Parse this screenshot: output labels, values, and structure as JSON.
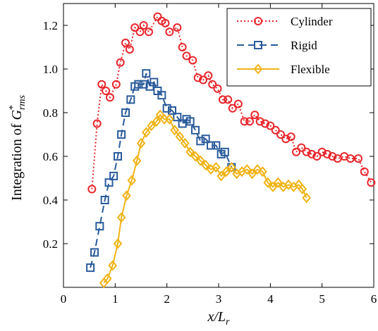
{
  "chart_data": {
    "type": "line",
    "xlabel_main": "x/L",
    "xlabel_sub": "r",
    "ylabel_text": "Integration of ",
    "ylabel_symbol": "G",
    "ylabel_sup": "*",
    "ylabel_sub": "rms",
    "xlim": [
      0,
      6
    ],
    "ylim": [
      0,
      1.3
    ],
    "xticks": [
      0,
      1,
      2,
      3,
      4,
      5,
      6
    ],
    "yticks": [
      0.2,
      0.4,
      0.6,
      {
        "value": 0.8,
        "label": "0.8"
      },
      {
        "value": 1,
        "label": "1.0"
      },
      1.2
    ],
    "legend": "upper right",
    "series": [
      {
        "name": "Cylinder",
        "color": "#e8262c",
        "line_style": "dotted",
        "marker": "circle",
        "x": [
          0.55,
          0.65,
          0.74,
          0.82,
          0.9,
          1.02,
          1.1,
          1.2,
          1.28,
          1.38,
          1.48,
          1.55,
          1.65,
          1.82,
          1.9,
          1.97,
          2.05,
          2.2,
          2.3,
          2.38,
          2.5,
          2.6,
          2.7,
          2.8,
          2.88,
          2.98,
          3.08,
          3.18,
          3.27,
          3.38,
          3.5,
          3.6,
          3.7,
          3.8,
          3.9,
          4.0,
          4.1,
          4.2,
          4.3,
          4.4,
          4.5,
          4.6,
          4.7,
          4.8,
          4.9,
          5.0,
          5.1,
          5.2,
          5.3,
          5.43,
          5.55,
          5.7,
          5.82,
          5.95
        ],
        "values": [
          0.45,
          0.75,
          0.93,
          0.9,
          0.87,
          0.93,
          1.03,
          1.12,
          1.09,
          1.19,
          1.17,
          1.2,
          1.17,
          1.24,
          1.22,
          1.21,
          1.17,
          1.19,
          1.1,
          1.06,
          1.04,
          0.96,
          0.95,
          0.97,
          0.93,
          0.91,
          0.86,
          0.86,
          0.82,
          0.84,
          0.76,
          0.76,
          0.79,
          0.76,
          0.75,
          0.74,
          0.72,
          0.7,
          0.68,
          0.69,
          0.62,
          0.64,
          0.62,
          0.61,
          0.6,
          0.62,
          0.61,
          0.6,
          0.59,
          0.6,
          0.59,
          0.59,
          0.53,
          0.48
        ]
      },
      {
        "name": "Rigid",
        "color": "#2a5b9b",
        "line_style": "dashed",
        "marker": "square",
        "x": [
          0.52,
          0.6,
          0.7,
          0.8,
          0.88,
          0.97,
          1.05,
          1.12,
          1.2,
          1.3,
          1.38,
          1.45,
          1.55,
          1.6,
          1.67,
          1.75,
          1.82,
          1.9,
          2.0,
          2.1,
          2.2,
          2.3,
          2.38,
          2.45,
          2.55,
          2.65,
          2.75,
          2.85,
          2.95,
          3.05,
          3.12,
          3.25
        ],
        "values": [
          0.09,
          0.16,
          0.28,
          0.4,
          0.48,
          0.51,
          0.6,
          0.7,
          0.8,
          0.86,
          0.92,
          0.93,
          0.93,
          0.98,
          0.92,
          0.94,
          0.9,
          0.88,
          0.82,
          0.81,
          0.78,
          0.75,
          0.77,
          0.76,
          0.72,
          0.67,
          0.68,
          0.65,
          0.65,
          0.61,
          0.62,
          0.55
        ]
      },
      {
        "name": "Flexible",
        "color": "#f0b316",
        "line_style": "solid",
        "marker": "diamond",
        "x": [
          0.78,
          0.85,
          0.95,
          1.05,
          1.12,
          1.22,
          1.32,
          1.42,
          1.5,
          1.6,
          1.7,
          1.8,
          1.87,
          1.95,
          2.05,
          2.15,
          2.25,
          2.35,
          2.45,
          2.55,
          2.65,
          2.75,
          2.85,
          2.95,
          3.05,
          3.15,
          3.25,
          3.35,
          3.45,
          3.55,
          3.65,
          3.75,
          3.85,
          3.95,
          4.05,
          4.15,
          4.25,
          4.35,
          4.45,
          4.55,
          4.62,
          4.7
        ],
        "values": [
          0.02,
          0.04,
          0.1,
          0.2,
          0.32,
          0.42,
          0.49,
          0.58,
          0.66,
          0.71,
          0.74,
          0.76,
          0.79,
          0.77,
          0.77,
          0.72,
          0.69,
          0.66,
          0.62,
          0.6,
          0.58,
          0.56,
          0.54,
          0.55,
          0.51,
          0.53,
          0.55,
          0.52,
          0.53,
          0.54,
          0.52,
          0.54,
          0.53,
          0.48,
          0.46,
          0.48,
          0.46,
          0.47,
          0.46,
          0.47,
          0.45,
          0.41
        ]
      }
    ]
  }
}
